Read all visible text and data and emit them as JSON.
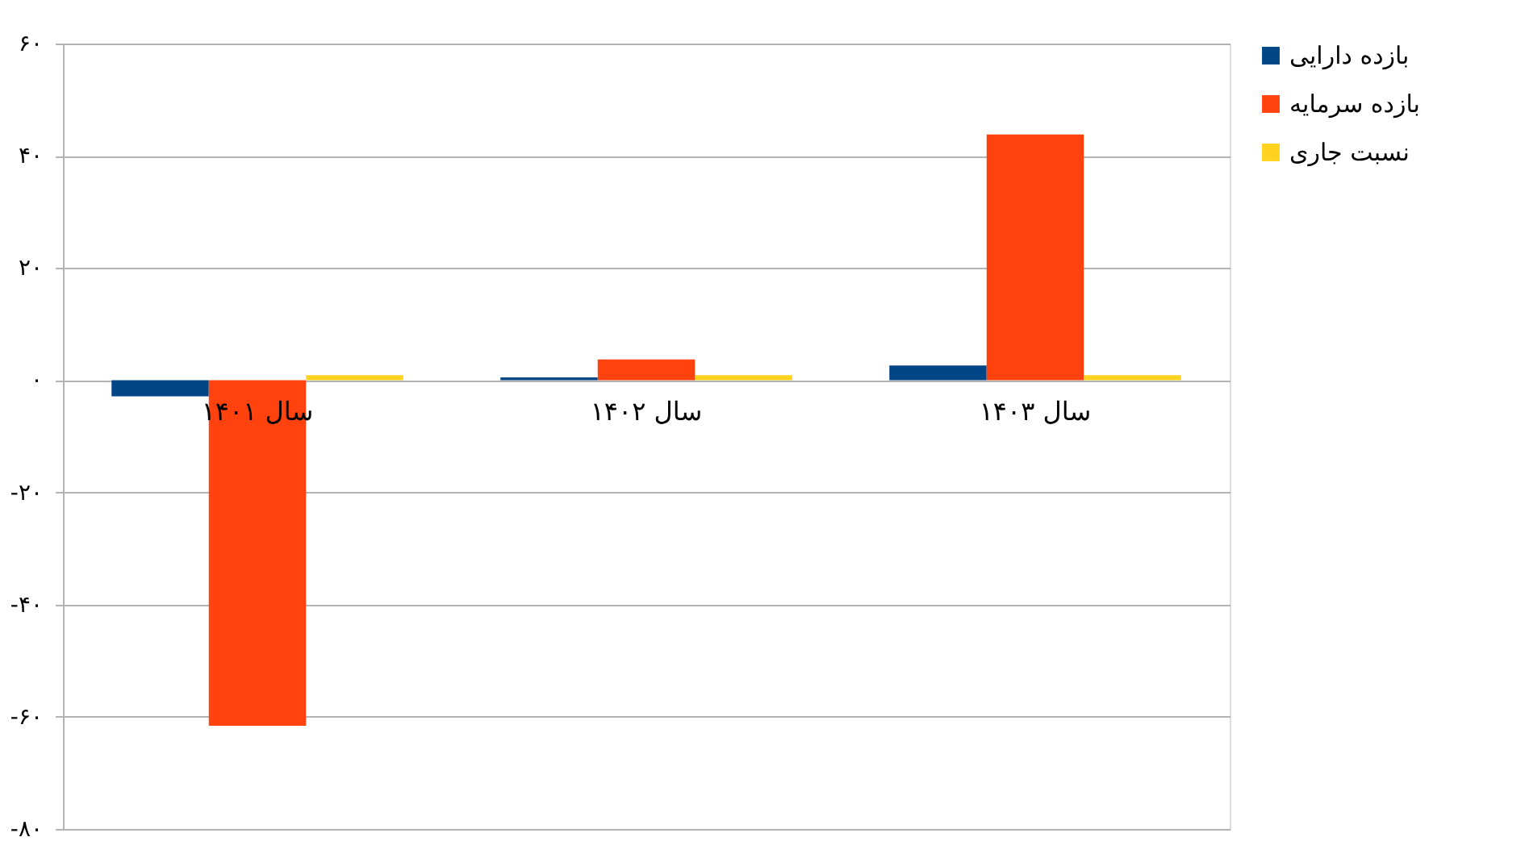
{
  "chart_data": {
    "type": "bar",
    "categories": [
      "سال ۱۴۰۱",
      "سال ۱۴۰۲",
      "سال ۱۴۰۳"
    ],
    "series": [
      {
        "name": "بازده دارایی",
        "color": "#004586",
        "values": [
          -2.9,
          0.5,
          2.6
        ]
      },
      {
        "name": "بازده سرمایه",
        "color": "#ff420e",
        "values": [
          -61.6,
          3.7,
          43.8
        ]
      },
      {
        "name": "نسبت جاری",
        "color": "#ffd320",
        "values": [
          0.9,
          0.9,
          0.9
        ]
      }
    ],
    "ylim": [
      -80,
      60
    ],
    "yticks": [
      {
        "value": -80,
        "label": "-۸۰"
      },
      {
        "value": -60,
        "label": "-۶۰"
      },
      {
        "value": -40,
        "label": "-۴۰"
      },
      {
        "value": -20,
        "label": "-۲۰"
      },
      {
        "value": 0,
        "label": "۰"
      },
      {
        "value": 20,
        "label": "۲۰"
      },
      {
        "value": 40,
        "label": "۴۰"
      },
      {
        "value": 60,
        "label": "۶۰"
      }
    ],
    "grid": "y",
    "legend": "right"
  }
}
